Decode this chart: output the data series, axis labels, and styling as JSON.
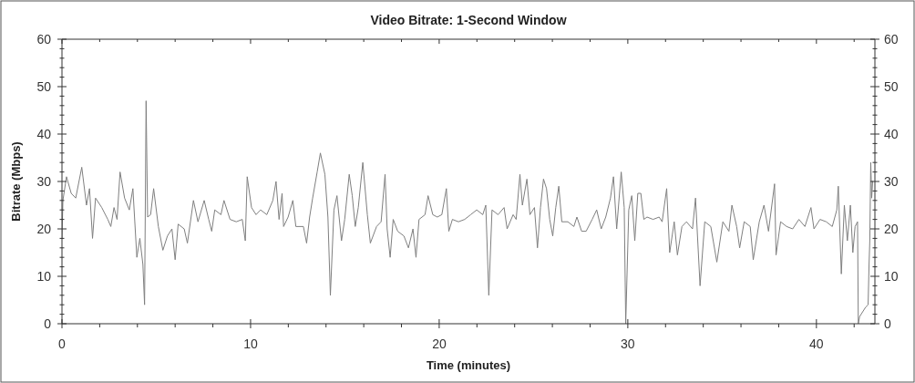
{
  "chart_data": {
    "type": "line",
    "title": "Video Bitrate: 1-Second Window",
    "xlabel": "Time (minutes)",
    "ylabel": "Bitrate (Mbps)",
    "xlim": [
      0,
      43.1
    ],
    "xticks": [
      0,
      {
        "value": 2,
        "label": null
      },
      {
        "value": 4,
        "label": null
      },
      {
        "value": 6,
        "label": null
      },
      {
        "value": 8,
        "label": null
      },
      10,
      {
        "value": 12,
        "label": null
      },
      {
        "value": 14,
        "label": null
      },
      {
        "value": 16,
        "label": null
      },
      {
        "value": 18,
        "label": null
      },
      20,
      {
        "value": 22,
        "label": null
      },
      {
        "value": 24,
        "label": null
      },
      {
        "value": 26,
        "label": null
      },
      {
        "value": 28,
        "label": null
      },
      30,
      {
        "value": 32,
        "label": null
      },
      {
        "value": 34,
        "label": null
      },
      {
        "value": 36,
        "label": null
      },
      {
        "value": 38,
        "label": null
      },
      40,
      {
        "value": 42,
        "label": null
      }
    ],
    "ylim": [
      0,
      60
    ],
    "yticks": [
      0,
      {
        "value": 2,
        "label": null
      },
      {
        "value": 4,
        "label": null
      },
      {
        "value": 6,
        "label": null
      },
      {
        "value": 8,
        "label": null
      },
      10,
      {
        "value": 12,
        "label": null
      },
      {
        "value": 14,
        "label": null
      },
      {
        "value": 16,
        "label": null
      },
      {
        "value": 18,
        "label": null
      },
      20,
      {
        "value": 22,
        "label": null
      },
      {
        "value": 24,
        "label": null
      },
      {
        "value": 26,
        "label": null
      },
      {
        "value": 28,
        "label": null
      },
      30,
      {
        "value": 32,
        "label": null
      },
      {
        "value": 34,
        "label": null
      },
      {
        "value": 36,
        "label": null
      },
      {
        "value": 38,
        "label": null
      },
      40,
      {
        "value": 42,
        "label": null
      },
      {
        "value": 44,
        "label": null
      },
      {
        "value": 46,
        "label": null
      },
      {
        "value": 48,
        "label": null
      },
      50,
      {
        "value": 52,
        "label": null
      },
      {
        "value": 54,
        "label": null
      },
      {
        "value": 56,
        "label": null
      },
      {
        "value": 58,
        "label": null
      },
      60
    ],
    "y2lim": [
      0,
      60
    ],
    "y2ticks": [
      0,
      {
        "value": 2,
        "label": null
      },
      {
        "value": 4,
        "label": null
      },
      {
        "value": 6,
        "label": null
      },
      {
        "value": 8,
        "label": null
      },
      10,
      {
        "value": 12,
        "label": null
      },
      {
        "value": 14,
        "label": null
      },
      {
        "value": 16,
        "label": null
      },
      {
        "value": 18,
        "label": null
      },
      20,
      {
        "value": 22,
        "label": null
      },
      {
        "value": 24,
        "label": null
      },
      {
        "value": 26,
        "label": null
      },
      {
        "value": 28,
        "label": null
      },
      30,
      {
        "value": 32,
        "label": null
      },
      {
        "value": 34,
        "label": null
      },
      {
        "value": 36,
        "label": null
      },
      {
        "value": 38,
        "label": null
      },
      40,
      {
        "value": 42,
        "label": null
      },
      {
        "value": 44,
        "label": null
      },
      {
        "value": 46,
        "label": null
      },
      {
        "value": 48,
        "label": null
      },
      50,
      {
        "value": 52,
        "label": null
      },
      {
        "value": 54,
        "label": null
      },
      {
        "value": 56,
        "label": null
      },
      {
        "value": 58,
        "label": null
      },
      60
    ],
    "series": [
      {
        "color": "#7f7f7f",
        "x": [
          0,
          0.05,
          0.24,
          0.49,
          0.73,
          1.05,
          1.3,
          1.46,
          1.62,
          1.78,
          2.11,
          2.43,
          2.59,
          2.76,
          2.92,
          3.08,
          3.32,
          3.57,
          3.76,
          3.97,
          4.13,
          4.29,
          4.38,
          4.46,
          4.54,
          4.7,
          4.86,
          5.11,
          5.35,
          5.59,
          5.83,
          6.0,
          6.16,
          6.48,
          6.65,
          6.97,
          7.21,
          7.54,
          7.78,
          7.94,
          8.1,
          8.43,
          8.59,
          8.91,
          9.24,
          9.56,
          9.72,
          9.82,
          10.05,
          10.29,
          10.53,
          10.86,
          11.18,
          11.35,
          11.51,
          11.67,
          11.75,
          11.99,
          12.24,
          12.4,
          12.8,
          12.97,
          13.13,
          13.29,
          13.53,
          13.7,
          13.94,
          14.1,
          14.23,
          14.42,
          14.58,
          14.82,
          14.99,
          15.23,
          15.39,
          15.55,
          15.71,
          15.95,
          16.19,
          16.35,
          16.68,
          16.92,
          17.13,
          17.24,
          17.4,
          17.56,
          17.8,
          18.13,
          18.37,
          18.61,
          18.77,
          18.93,
          19.25,
          19.41,
          19.66,
          19.9,
          20.14,
          20.38,
          20.51,
          20.7,
          21.02,
          21.35,
          21.67,
          21.99,
          22.31,
          22.47,
          22.63,
          22.8,
          23.12,
          23.44,
          23.6,
          23.92,
          24.08,
          24.28,
          24.41,
          24.65,
          24.81,
          25.05,
          25.21,
          25.37,
          25.53,
          25.69,
          25.86,
          26.02,
          26.18,
          26.34,
          26.5,
          26.82,
          27.14,
          27.3,
          27.55,
          27.79,
          28.11,
          28.35,
          28.59,
          28.83,
          29.08,
          29.24,
          29.41,
          29.65,
          29.81,
          29.89,
          30.05,
          30.21,
          30.37,
          30.53,
          30.69,
          30.85,
          31.02,
          31.34,
          31.66,
          31.82,
          32.06,
          32.22,
          32.46,
          32.63,
          32.87,
          33.11,
          33.43,
          33.59,
          33.83,
          34.08,
          34.4,
          34.72,
          35.04,
          35.36,
          35.52,
          35.77,
          35.93,
          36.17,
          36.49,
          36.65,
          36.97,
          37.22,
          37.46,
          37.78,
          37.86,
          38.1,
          38.42,
          38.74,
          39.07,
          39.39,
          39.71,
          39.87,
          40.19,
          40.52,
          40.84,
          41.08,
          41.16,
          41.32,
          41.48,
          41.64,
          41.8,
          41.93,
          42.05,
          42.18,
          42.22,
          42.29,
          42.45,
          42.61,
          42.74,
          42.79,
          42.83,
          42.88,
          42.93,
          42.98
        ],
        "values": [
          18,
          26,
          31,
          27.5,
          26.5,
          33,
          25,
          28.5,
          18,
          26.5,
          24.5,
          22,
          20.5,
          24.5,
          22,
          32,
          26.5,
          24,
          28.5,
          14,
          18,
          12.5,
          4,
          47,
          22.5,
          23,
          28.5,
          20.5,
          15.5,
          18.5,
          20,
          13.5,
          21,
          20,
          17,
          26,
          21.5,
          26,
          22,
          19.5,
          24,
          23,
          26,
          22,
          21.5,
          22,
          17.5,
          31,
          24.5,
          23,
          24,
          23,
          26,
          30,
          22,
          27.5,
          20.5,
          22.5,
          26,
          20.5,
          20.5,
          17,
          22.5,
          26.5,
          32,
          36,
          31.5,
          22.5,
          6,
          24,
          27,
          17.5,
          22,
          31.5,
          27,
          20.5,
          24.5,
          34,
          23,
          17,
          20.5,
          21.5,
          31.5,
          20,
          14,
          22,
          19.5,
          18.5,
          16,
          20,
          14,
          22,
          23,
          27,
          23,
          22.5,
          23,
          28.5,
          19.5,
          22,
          21.5,
          22,
          23,
          24,
          23,
          25,
          6,
          24,
          23,
          24.5,
          20,
          23,
          22,
          31.5,
          25,
          30.5,
          23,
          24.5,
          16,
          24.5,
          30.5,
          28.5,
          22,
          18.5,
          24.5,
          29,
          21.5,
          21.5,
          20.5,
          22.5,
          19.5,
          19.5,
          22,
          24,
          20,
          22.5,
          26.5,
          31,
          20,
          32,
          24.5,
          0,
          24,
          27,
          17.5,
          27.5,
          27.5,
          22,
          22.5,
          22,
          22.5,
          21.5,
          28.5,
          15,
          21.5,
          14.5,
          20.5,
          21.5,
          20,
          26.5,
          8,
          21.5,
          20.5,
          13,
          21.5,
          19.5,
          25,
          20.5,
          16,
          21.5,
          20.5,
          13.5,
          21.5,
          25,
          19.5,
          29.5,
          14.5,
          21.5,
          20.5,
          20,
          22,
          20.5,
          24.5,
          20,
          22,
          21.5,
          20.5,
          24,
          29,
          10.5,
          25,
          17.5,
          25,
          15,
          20.5,
          21.5,
          0,
          1.5,
          2.5,
          3.5,
          4,
          12.5,
          17.5,
          34,
          26.5,
          30
        ]
      }
    ]
  }
}
